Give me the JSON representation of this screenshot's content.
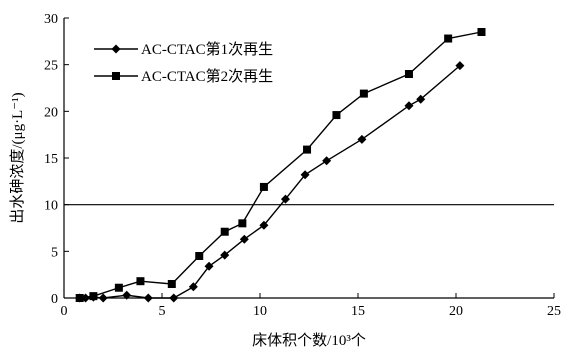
{
  "chart_data": {
    "type": "line",
    "title": "",
    "xlabel": "床体积个数/10³个",
    "ylabel": "出水砷浓度/(μg·L⁻¹)",
    "xlim": [
      0,
      25
    ],
    "ylim": [
      0,
      30
    ],
    "xticks": [
      0,
      5,
      10,
      15,
      20,
      25
    ],
    "yticks": [
      0,
      5,
      10,
      15,
      20,
      25,
      30
    ],
    "grid": false,
    "legend_position": "top-left",
    "reference_line": {
      "y": 10
    },
    "series": [
      {
        "name": "AC-CTAC第1次再生",
        "marker": "diamond",
        "color": "#000000",
        "x": [
          0.8,
          1.1,
          1.5,
          2.0,
          3.2,
          4.3,
          5.6,
          6.6,
          7.4,
          8.2,
          9.2,
          10.2,
          11.3,
          12.3,
          13.4,
          15.2,
          17.6,
          18.2,
          20.2
        ],
        "y": [
          0.0,
          0.0,
          0.1,
          0.0,
          0.3,
          0.0,
          0.0,
          1.2,
          3.4,
          4.6,
          6.3,
          7.8,
          10.6,
          13.2,
          14.7,
          17.0,
          20.6,
          21.3,
          24.9
        ]
      },
      {
        "name": "AC-CTAC第2次再生",
        "marker": "square",
        "color": "#000000",
        "x": [
          0.8,
          1.5,
          2.8,
          3.9,
          5.5,
          6.9,
          8.2,
          9.1,
          10.2,
          12.4,
          13.9,
          15.3,
          17.6,
          19.6,
          21.3
        ],
        "y": [
          0.0,
          0.2,
          1.1,
          1.8,
          1.5,
          4.5,
          7.1,
          8.0,
          11.9,
          15.9,
          19.6,
          21.9,
          24.0,
          27.8,
          28.5
        ]
      }
    ]
  }
}
